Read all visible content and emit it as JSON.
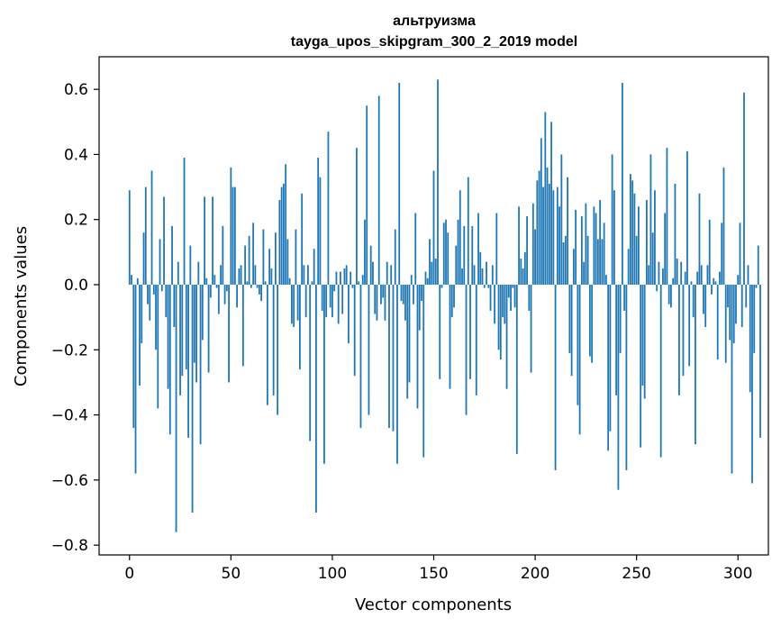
{
  "chart_data": {
    "type": "bar",
    "title": "альтруизма",
    "subtitle": "tayga_upos_skipgram_300_2_2019 model",
    "xlabel": "Vector components",
    "ylabel": "Components values",
    "xlim": [
      -15,
      315
    ],
    "ylim": [
      -0.83,
      0.7
    ],
    "xticks": [
      0,
      50,
      100,
      150,
      200,
      250,
      300
    ],
    "xtick_labels": [
      "0",
      "50",
      "100",
      "150",
      "200",
      "250",
      "300"
    ],
    "yticks": [
      -0.8,
      -0.6,
      -0.4,
      -0.2,
      0.0,
      0.2,
      0.4,
      0.6
    ],
    "ytick_labels": [
      "−0.8",
      "−0.6",
      "−0.4",
      "−0.2",
      "0.0",
      "0.2",
      "0.4",
      "0.6"
    ],
    "bar_color": "#1f77b4",
    "grid": false,
    "values": [
      0.29,
      0.03,
      -0.44,
      -0.58,
      0.02,
      -0.31,
      -0.18,
      0.16,
      0.3,
      -0.06,
      -0.11,
      0.35,
      -0.03,
      -0.2,
      -0.38,
      0.14,
      -0.02,
      0.27,
      -0.1,
      -0.32,
      -0.46,
      0.18,
      -0.13,
      -0.76,
      0.07,
      -0.34,
      -0.28,
      0.39,
      -0.26,
      -0.47,
      0.12,
      -0.7,
      -0.24,
      -0.3,
      0.07,
      -0.49,
      -0.17,
      0.27,
      0.02,
      -0.27,
      -0.04,
      0.27,
      0.03,
      -0.01,
      -0.09,
      0.06,
      0.18,
      -0.06,
      -0.02,
      -0.3,
      0.36,
      0.3,
      0.3,
      -0.07,
      0.05,
      0.06,
      -0.25,
      0.12,
      0.01,
      0.15,
      -0.01,
      0.19,
      0.06,
      -0.01,
      -0.03,
      -0.05,
      0.17,
      0.01,
      -0.37,
      0.11,
      0.05,
      -0.34,
      0.16,
      -0.4,
      0.26,
      0.3,
      0.31,
      0.37,
      0.14,
      0.02,
      -0.12,
      -0.13,
      0.17,
      -0.11,
      -0.26,
      0.28,
      0.06,
      -0.1,
      0.06,
      -0.48,
      0.01,
      0.11,
      -0.7,
      0.39,
      0.33,
      -0.08,
      -0.55,
      -0.1,
      0.47,
      -0.07,
      -0.1,
      -0.02,
      0.04,
      -0.12,
      0.04,
      -0.09,
      0.05,
      0.06,
      -0.18,
      0.04,
      -0.01,
      -0.28,
      0.42,
      0.01,
      -0.44,
      0.03,
      0.2,
      0.55,
      -0.4,
      0.12,
      0.07,
      -0.09,
      -0.11,
      0.58,
      -0.06,
      -0.04,
      -0.11,
      0.07,
      -0.44,
      0.06,
      -0.45,
      0.17,
      -0.55,
      0.62,
      -0.05,
      -0.06,
      -0.11,
      -0.35,
      -0.3,
      0.03,
      -0.06,
      0.22,
      -0.38,
      -0.14,
      -0.05,
      -0.53,
      0.04,
      0.02,
      0.14,
      0.07,
      0.35,
      0.08,
      0.63,
      -0.29,
      -0.01,
      0.19,
      0.2,
      0.16,
      -0.32,
      -0.1,
      -0.07,
      0.12,
      0.2,
      0.29,
      0.05,
      0.18,
      -0.4,
      0.33,
      -0.29,
      0.18,
      0.06,
      -0.34,
      0.22,
      0.1,
      0.05,
      -0.01,
      0.07,
      -0.01,
      -0.08,
      0.06,
      -0.12,
      0.22,
      -0.2,
      -0.23,
      -0.1,
      -0.12,
      -0.32,
      -0.04,
      -0.08,
      -0.01,
      -0.07,
      -0.52,
      0.24,
      0.08,
      0.05,
      0.1,
      0.21,
      -0.08,
      -0.27,
      0.25,
      0.17,
      0.32,
      0.35,
      0.45,
      0.3,
      0.53,
      0.36,
      0.31,
      0.5,
      0.29,
      -0.57,
      0.3,
      0.24,
      0.4,
      0.13,
      0.15,
      0.33,
      -0.21,
      -0.28,
      0.11,
      0.23,
      -0.37,
      -0.46,
      0.21,
      0.07,
      0.25,
      0.15,
      -0.22,
      -0.24,
      0.24,
      0.22,
      0.14,
      0.26,
      0.14,
      0.19,
      0.03,
      -0.51,
      -0.45,
      0.4,
      0.29,
      -0.34,
      -0.63,
      -0.21,
      0.62,
      -0.08,
      -0.57,
      0.11,
      0.34,
      0.32,
      0.28,
      0.15,
      0.24,
      -0.5,
      -0.31,
      -0.35,
      0.26,
      0.06,
      0.4,
      0.16,
      0.29,
      -0.02,
      0.07,
      -0.53,
      0.05,
      0.22,
      0.42,
      -0.06,
      -0.07,
      0.02,
      0.31,
      0.08,
      -0.34,
      0.07,
      -0.28,
      0.04,
      0.41,
      -0.25,
      0.01,
      -0.1,
      -0.49,
      0.04,
      0.28,
      0.06,
      -0.09,
      -0.13,
      0.06,
      0.2,
      -0.03,
      0.02,
      0.01,
      -0.23,
      0.04,
      0.19,
      0.36,
      -0.24,
      -0.07,
      -0.17,
      -0.58,
      -0.18,
      -0.12,
      0.03,
      0.19,
      -0.13,
      0.59,
      -0.07,
      0.06,
      -0.33,
      -0.61,
      -0.21,
      -0.01,
      0.12,
      -0.47
    ]
  }
}
